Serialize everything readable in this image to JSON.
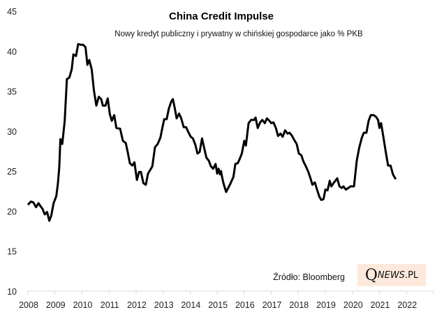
{
  "chart_data": {
    "type": "line",
    "title": "China Credit Impulse",
    "subtitle": "Nowy kredyt publiczny i prywatny w chińskiej gospodarce jako % PKB",
    "xlabel": "",
    "ylabel": "",
    "ylim": [
      10,
      45
    ],
    "yticks": [
      "10",
      "15",
      "20",
      "25",
      "30",
      "35",
      "40",
      "45"
    ],
    "xlim": [
      2008,
      2023
    ],
    "xticks": [
      "2008",
      "2009",
      "2010",
      "2011",
      "2012",
      "2013",
      "2014",
      "2015",
      "2016",
      "2017",
      "2018",
      "2019",
      "2020",
      "2021",
      "2022"
    ],
    "grid": false,
    "source": "Źródło: Bloomberg",
    "series": [
      {
        "name": "China Credit Impulse",
        "color": "#000000",
        "x": [
          2008.0,
          2008.11,
          2008.2,
          2008.3,
          2008.39,
          2008.47,
          2008.54,
          2008.62,
          2008.71,
          2008.79,
          2008.86,
          2008.95,
          2009.05,
          2009.11,
          2009.16,
          2009.2,
          2009.27,
          2009.36,
          2009.44,
          2009.53,
          2009.62,
          2009.68,
          2009.78,
          2009.86,
          2009.95,
          2010.04,
          2010.13,
          2010.2,
          2010.27,
          2010.36,
          2010.44,
          2010.53,
          2010.62,
          2010.71,
          2010.77,
          2010.87,
          2010.95,
          2011.03,
          2011.1,
          2011.19,
          2011.27,
          2011.41,
          2011.51,
          2011.62,
          2011.69,
          2011.77,
          2011.86,
          2011.94,
          2012.03,
          2012.11,
          2012.18,
          2012.27,
          2012.36,
          2012.44,
          2012.53,
          2012.6,
          2012.7,
          2012.8,
          2012.9,
          2012.97,
          2013.04,
          2013.13,
          2013.21,
          2013.3,
          2013.36,
          2013.43,
          2013.5,
          2013.59,
          2013.67,
          2013.76,
          2013.85,
          2013.93,
          2014.02,
          2014.1,
          2014.19,
          2014.27,
          2014.35,
          2014.44,
          2014.51,
          2014.6,
          2014.69,
          2014.77,
          2014.85,
          2014.94,
          2015.0,
          2015.05,
          2015.1,
          2015.14,
          2015.19,
          2015.24,
          2015.33,
          2015.47,
          2015.6,
          2015.67,
          2015.76,
          2015.84,
          2015.91,
          2016.0,
          2016.06,
          2016.16,
          2016.25,
          2016.36,
          2016.42,
          2016.5,
          2016.59,
          2016.67,
          2016.76,
          2016.84,
          2016.93,
          2017.0,
          2017.08,
          2017.17,
          2017.25,
          2017.34,
          2017.42,
          2017.51,
          2017.6,
          2017.68,
          2017.77,
          2017.85,
          2017.94,
          2018.02,
          2018.11,
          2018.19,
          2018.28,
          2018.37,
          2018.45,
          2018.52,
          2018.61,
          2018.69,
          2018.78,
          2018.85,
          2018.93,
          2019.0,
          2019.08,
          2019.16,
          2019.22,
          2019.32,
          2019.44,
          2019.52,
          2019.61,
          2019.67,
          2019.76,
          2019.85,
          2019.93,
          2020.06,
          2020.16,
          2020.25,
          2020.34,
          2020.42,
          2020.52,
          2020.6,
          2020.68,
          2020.79,
          2020.87,
          2020.95,
          2021.0,
          2021.06,
          2021.15,
          2021.23,
          2021.32,
          2021.41,
          2021.5,
          2021.6
        ],
        "y": [
          20.8,
          21.2,
          21.1,
          20.5,
          21.0,
          20.6,
          20.3,
          19.6,
          19.9,
          18.8,
          19.4,
          21.0,
          21.9,
          23.5,
          25.5,
          29.0,
          28.4,
          31.3,
          36.5,
          36.7,
          37.7,
          39.6,
          39.4,
          40.9,
          40.8,
          40.8,
          40.5,
          38.3,
          38.9,
          37.7,
          35.1,
          33.2,
          34.3,
          34.0,
          33.2,
          33.2,
          34.1,
          32.1,
          31.3,
          32.0,
          30.4,
          30.3,
          28.8,
          28.5,
          27.4,
          26.0,
          25.7,
          26.1,
          23.9,
          24.9,
          24.9,
          23.5,
          23.3,
          24.7,
          25.2,
          25.6,
          28.0,
          28.4,
          29.2,
          30.4,
          31.5,
          31.5,
          32.8,
          33.7,
          34.0,
          32.9,
          31.6,
          32.2,
          31.6,
          30.5,
          30.5,
          29.9,
          29.3,
          29.1,
          28.3,
          27.2,
          27.4,
          29.1,
          28.0,
          26.7,
          26.3,
          25.6,
          25.3,
          25.9,
          24.7,
          25.3,
          24.6,
          25.0,
          24.1,
          23.4,
          22.4,
          23.3,
          24.3,
          25.9,
          26.0,
          26.6,
          27.2,
          28.8,
          28.2,
          31.0,
          31.4,
          31.4,
          31.7,
          30.4,
          31.1,
          31.4,
          31.0,
          31.6,
          31.3,
          31.0,
          31.1,
          30.4,
          29.4,
          29.7,
          29.3,
          30.1,
          29.7,
          29.8,
          29.4,
          28.9,
          28.4,
          27.2,
          27.0,
          26.2,
          25.6,
          24.9,
          24.1,
          23.3,
          23.6,
          22.7,
          21.8,
          21.4,
          21.5,
          22.7,
          22.6,
          23.8,
          23.1,
          23.6,
          24.1,
          23.1,
          22.9,
          23.1,
          22.7,
          22.9,
          23.1,
          23.1,
          26.3,
          27.9,
          29.1,
          29.8,
          29.8,
          31.3,
          32.0,
          32.0,
          31.8,
          31.4,
          30.4,
          31.0,
          29.2,
          27.5,
          25.7,
          25.7,
          24.6,
          24.0
        ]
      }
    ]
  },
  "logo": {
    "q": "Q",
    "news": "NEWS",
    "pl": ".PL"
  }
}
